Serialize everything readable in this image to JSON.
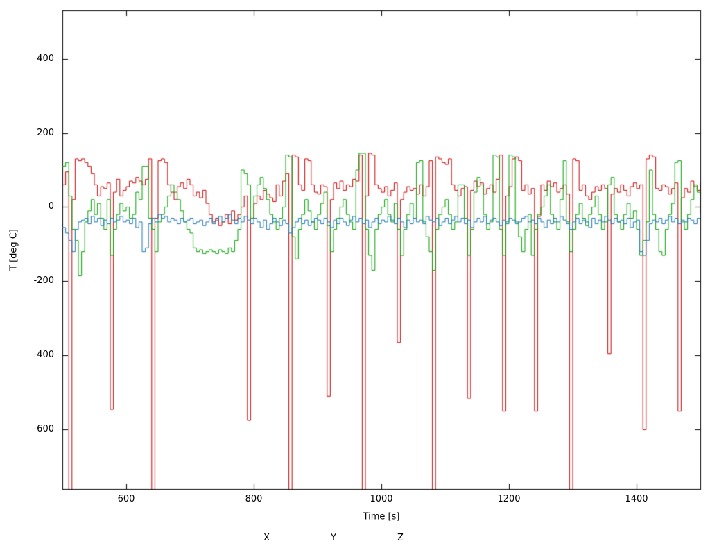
{
  "chart_data": {
    "type": "line",
    "title": "",
    "xlabel": "Time [s]",
    "ylabel": "T [deg C]",
    "xlim": [
      500,
      1500
    ],
    "ylim": [
      -760,
      530
    ],
    "xticks": [
      600,
      800,
      1000,
      1200,
      1400
    ],
    "yticks": [
      -600,
      -400,
      -200,
      0,
      200,
      400
    ],
    "grid": false,
    "line_style": "steps",
    "legend_position": "bottom-center",
    "x_start": 500,
    "x_step": 5,
    "series": [
      {
        "name": "X",
        "color": "#cc0000",
        "values": [
          60,
          95,
          -800,
          20,
          130,
          125,
          130,
          120,
          110,
          90,
          60,
          30,
          55,
          50,
          65,
          -545,
          40,
          75,
          30,
          45,
          55,
          70,
          65,
          80,
          70,
          60,
          75,
          130,
          -800,
          -30,
          125,
          130,
          120,
          60,
          40,
          20,
          55,
          65,
          50,
          75,
          60,
          30,
          40,
          25,
          45,
          10,
          -20,
          -40,
          -30,
          -50,
          -40,
          -20,
          -45,
          -10,
          -35,
          -20,
          0,
          30,
          -575,
          -30,
          10,
          30,
          20,
          45,
          35,
          25,
          15,
          60,
          30,
          70,
          90,
          -800,
          140,
          135,
          60,
          45,
          130,
          125,
          60,
          40,
          35,
          60,
          55,
          -510,
          20,
          65,
          50,
          70,
          45,
          60,
          55,
          75,
          70,
          140,
          -800,
          30,
          145,
          140,
          60,
          50,
          40,
          55,
          30,
          45,
          65,
          -365,
          20,
          40,
          55,
          45,
          50,
          35,
          60,
          30,
          55,
          125,
          -800,
          135,
          130,
          120,
          115,
          130,
          60,
          45,
          30,
          50,
          55,
          -515,
          45,
          70,
          55,
          65,
          35,
          50,
          60,
          40,
          75,
          140,
          -550,
          30,
          55,
          130,
          135,
          125,
          45,
          60,
          35,
          50,
          -550,
          -25,
          60,
          45,
          70,
          55,
          65,
          40,
          50,
          60,
          35,
          -800,
          130,
          125,
          45,
          60,
          30,
          20,
          40,
          55,
          45,
          60,
          50,
          -395,
          35,
          50,
          40,
          60,
          45,
          30,
          55,
          65,
          50,
          60,
          -600,
          130,
          140,
          135,
          50,
          45,
          60,
          55,
          35,
          50,
          65,
          -550,
          25,
          50,
          40,
          70,
          55,
          45,
          65
        ]
      },
      {
        "name": "Y",
        "color": "#00a000",
        "values": [
          110,
          120,
          30,
          -60,
          -90,
          -185,
          -120,
          -40,
          -10,
          20,
          -20,
          10,
          -30,
          -60,
          20,
          -130,
          -60,
          -20,
          10,
          -10,
          0,
          -30,
          -20,
          40,
          20,
          110,
          110,
          -30,
          -60,
          -120,
          -40,
          -20,
          0,
          30,
          60,
          40,
          20,
          -10,
          -40,
          -60,
          -70,
          -110,
          -120,
          -115,
          -125,
          -120,
          -115,
          -120,
          -125,
          -115,
          -120,
          -125,
          -110,
          -120,
          -90,
          -60,
          100,
          90,
          60,
          -30,
          30,
          60,
          80,
          50,
          20,
          -20,
          -40,
          -60,
          -30,
          0,
          140,
          135,
          -80,
          -140,
          -60,
          -20,
          20,
          -10,
          -40,
          -60,
          -20,
          10,
          40,
          -50,
          -120,
          -60,
          -30,
          0,
          20,
          -20,
          -40,
          -60,
          100,
          145,
          145,
          -60,
          -130,
          -170,
          -60,
          -20,
          0,
          20,
          -20,
          -40,
          10,
          -60,
          -130,
          -60,
          -20,
          10,
          -30,
          120,
          125,
          -40,
          -80,
          -120,
          -170,
          -60,
          -20,
          0,
          20,
          -20,
          -60,
          -40,
          60,
          60,
          -30,
          -130,
          -60,
          40,
          80,
          60,
          -20,
          -60,
          -40,
          140,
          135,
          -60,
          -130,
          -40,
          140,
          135,
          -40,
          -80,
          -120,
          -60,
          -20,
          -130,
          -60,
          -20,
          0,
          30,
          60,
          -20,
          -40,
          -60,
          20,
          125,
          -40,
          -120,
          -60,
          -20,
          10,
          -30,
          -50,
          -20,
          0,
          30,
          -20,
          -60,
          -40,
          60,
          80,
          -20,
          -40,
          -60,
          -20,
          10,
          -30,
          -10,
          -60,
          -130,
          -90,
          -40,
          100,
          -20,
          -60,
          -120,
          -130,
          -60,
          -20,
          10,
          120,
          125,
          -40,
          -60,
          -20,
          20,
          60,
          40,
          -20
        ]
      },
      {
        "name": "Z",
        "color": "#1f77b4",
        "values": [
          -55,
          -70,
          -90,
          -120,
          -60,
          -40,
          -35,
          -30,
          -45,
          -25,
          -40,
          -30,
          -50,
          -35,
          -45,
          -30,
          -40,
          -35,
          -25,
          -40,
          -35,
          -45,
          -30,
          -55,
          -40,
          -120,
          -110,
          -45,
          -30,
          -40,
          -20,
          -30,
          -25,
          -40,
          -30,
          -35,
          -45,
          -30,
          -40,
          -35,
          -30,
          -45,
          -40,
          -35,
          -50,
          -40,
          -30,
          -45,
          -35,
          -25,
          -40,
          -30,
          -20,
          -35,
          -45,
          -30,
          -40,
          -25,
          -35,
          -45,
          -30,
          -40,
          -55,
          -35,
          -60,
          -45,
          -30,
          -40,
          -50,
          -35,
          -45,
          -70,
          -55,
          -40,
          -30,
          -45,
          -35,
          -50,
          -40,
          -30,
          -35,
          -45,
          -30,
          -40,
          -55,
          -35,
          -45,
          -30,
          -40,
          -50,
          -35,
          -25,
          -40,
          -30,
          -45,
          -35,
          -55,
          -40,
          -30,
          -45,
          -35,
          -40,
          -25,
          -35,
          -45,
          -30,
          -40,
          -55,
          -35,
          -45,
          -30,
          -40,
          -35,
          -45,
          -25,
          -35,
          -40,
          -30,
          -50,
          -40,
          -30,
          -45,
          -35,
          -25,
          -40,
          -30,
          -45,
          -35,
          -55,
          -40,
          -30,
          -40,
          -25,
          -45,
          -35,
          -30,
          -40,
          -50,
          -35,
          -45,
          -30,
          -35,
          -45,
          -40,
          -30,
          -25,
          -40,
          -35,
          -45,
          -30,
          -40,
          -55,
          -35,
          -45,
          -30,
          -40,
          -25,
          -35,
          -45,
          -60,
          -40,
          -30,
          -45,
          -35,
          -40,
          -55,
          -30,
          -45,
          -35,
          -40,
          -25,
          -35,
          -45,
          -30,
          -40,
          -35,
          -45,
          -30,
          -55,
          -40,
          -35,
          -120,
          -130,
          -90,
          -45,
          -35,
          -40,
          -30,
          -45,
          -35,
          -25,
          -40,
          -30,
          -45,
          -35,
          -40,
          -30,
          -35,
          -45,
          -30,
          -35
        ]
      }
    ]
  },
  "axes": {
    "border_color": "#000000",
    "tick_label_color": "#000000"
  }
}
